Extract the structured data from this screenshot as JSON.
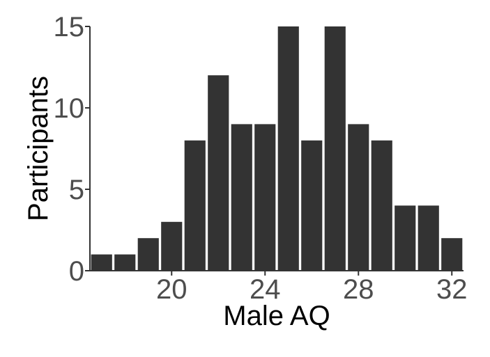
{
  "chart_data": {
    "type": "bar",
    "xlabel": "Male AQ",
    "ylabel": "Participants",
    "x": [
      17,
      18,
      19,
      20,
      21,
      22,
      23,
      24,
      25,
      26,
      27,
      28,
      29,
      30,
      31,
      32
    ],
    "values": [
      1,
      1,
      2,
      3,
      8,
      12,
      9,
      9,
      15,
      8,
      15,
      9,
      8,
      4,
      4,
      2
    ],
    "xlim": [
      16.5,
      32.5
    ],
    "ylim": [
      0,
      15
    ],
    "x_ticks": [
      20,
      24,
      28,
      32
    ],
    "y_ticks": [
      0,
      5,
      10,
      15
    ],
    "grid": false,
    "legend": "none",
    "bar_color": "#333333"
  }
}
